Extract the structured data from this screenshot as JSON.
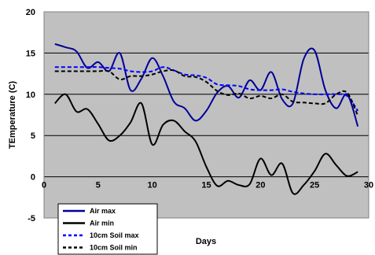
{
  "chart_data": {
    "type": "line",
    "title": "",
    "xlabel": "Days",
    "ylabel": "TEmperature (C)",
    "xlim": [
      0,
      30
    ],
    "ylim": [
      -5,
      20
    ],
    "xticks": [
      0,
      5,
      10,
      15,
      20,
      25,
      30
    ],
    "yticks": [
      -5,
      0,
      5,
      10,
      15,
      20
    ],
    "grid": "horizontal",
    "plot_background": "#c0c0c0",
    "legend_position": "bottom-left",
    "series": [
      {
        "name": "Air max",
        "color": "#000099",
        "style": "solid",
        "x": [
          1,
          2,
          3,
          4,
          5,
          6,
          7,
          8,
          9,
          10,
          11,
          12,
          13,
          14,
          15,
          16,
          17,
          18,
          19,
          20,
          21,
          22,
          23,
          24,
          25,
          26,
          27,
          28,
          29
        ],
        "y": [
          16.1,
          15.7,
          15.2,
          13.2,
          13.9,
          12.8,
          15.0,
          10.5,
          11.9,
          14.4,
          12.2,
          9.1,
          8.3,
          6.8,
          8.0,
          10.2,
          11.0,
          9.6,
          11.7,
          10.5,
          12.7,
          9.4,
          8.9,
          14.3,
          15.3,
          10.5,
          8.3,
          10.0,
          6.1
        ]
      },
      {
        "name": "Air min",
        "color": "#000000",
        "style": "solid",
        "x": [
          1,
          2,
          3,
          4,
          5,
          6,
          7,
          8,
          9,
          10,
          11,
          12,
          13,
          14,
          15,
          16,
          17,
          18,
          19,
          20,
          21,
          22,
          23,
          24,
          25,
          26,
          27,
          28,
          29
        ],
        "y": [
          8.9,
          10.0,
          7.9,
          8.2,
          6.4,
          4.4,
          5.0,
          6.6,
          8.9,
          3.9,
          6.3,
          6.8,
          5.5,
          4.3,
          1.2,
          -1.1,
          -0.5,
          -1.0,
          -0.9,
          2.2,
          0.2,
          1.6,
          -2.0,
          -1.0,
          0.7,
          2.8,
          1.4,
          0.1,
          0.6
        ]
      },
      {
        "name": "10cm Soil max",
        "color": "#0000ff",
        "style": "dashed",
        "x": [
          1,
          2,
          3,
          4,
          5,
          6,
          7,
          8,
          9,
          10,
          11,
          12,
          13,
          14,
          15,
          16,
          17,
          18,
          19,
          20,
          21,
          22,
          23,
          24,
          25,
          26,
          27,
          28,
          29
        ],
        "y": [
          13.3,
          13.3,
          13.3,
          13.3,
          13.3,
          13.2,
          13.1,
          12.8,
          12.7,
          12.8,
          13.3,
          12.9,
          12.4,
          12.3,
          12.0,
          11.2,
          11.1,
          11.0,
          10.6,
          10.5,
          10.5,
          10.6,
          10.3,
          10.1,
          10.0,
          10.0,
          10.0,
          9.8,
          8.0
        ]
      },
      {
        "name": "10cm Soil min",
        "color": "#000000",
        "style": "dashed",
        "x": [
          1,
          2,
          3,
          4,
          5,
          6,
          7,
          8,
          9,
          10,
          11,
          12,
          13,
          14,
          15,
          16,
          17,
          18,
          19,
          20,
          21,
          22,
          23,
          24,
          25,
          26,
          27,
          28,
          29
        ],
        "y": [
          12.8,
          12.8,
          12.8,
          12.8,
          12.8,
          12.8,
          11.8,
          12.2,
          12.2,
          12.4,
          12.8,
          12.9,
          12.2,
          12.1,
          11.5,
          10.4,
          9.9,
          10.1,
          9.5,
          9.8,
          9.5,
          10.0,
          9.1,
          9.0,
          8.9,
          8.9,
          10.0,
          10.2,
          7.4
        ]
      }
    ]
  }
}
